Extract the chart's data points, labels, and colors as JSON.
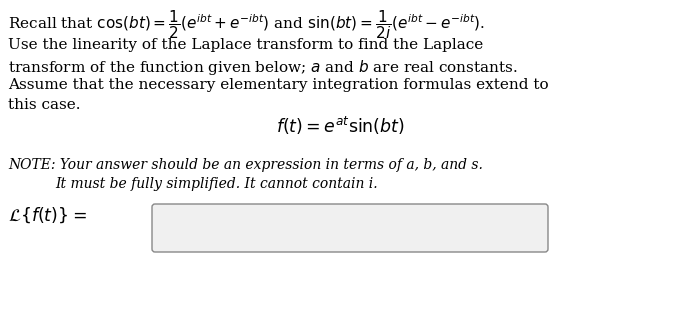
{
  "background_color": "#ffffff",
  "fig_width": 6.8,
  "fig_height": 3.21,
  "dpi": 100,
  "line1": "Recall that $\\cos(bt) = \\dfrac{1}{2}(e^{ibt} + e^{-ibt})$ and $\\sin(bt) = \\dfrac{1}{2i}(e^{ibt} - e^{-ibt})$.",
  "line2": "Use the linearity of the Laplace transform to find the Laplace",
  "line3": "transform of the function given below; $a$ and $b$ are real constants.",
  "line4": "Assume that the necessary elementary integration formulas extend to",
  "line5": "this case.",
  "formula": "$f(t) = e^{at}\\sin(bt)$",
  "note1": "$NOTE\\!:$ $Your$ $answer$ $should$ $be$ $an$ $expression$ $in$ $terms$ $of$ $a,$ $b,$ $and$ $s.$",
  "note1_plain": "NOTE: Your answer should be an expression in terms of a, b, and s.",
  "note2_plain": "It must be fully simplified. It cannot contain i.",
  "label": "$\\mathcal{L}\\{f(t)\\} =$",
  "text_color": "#000000",
  "body_fontsize": 11.0,
  "formula_fontsize": 12.5,
  "note_fontsize": 10.0,
  "label_fontsize": 12.5
}
